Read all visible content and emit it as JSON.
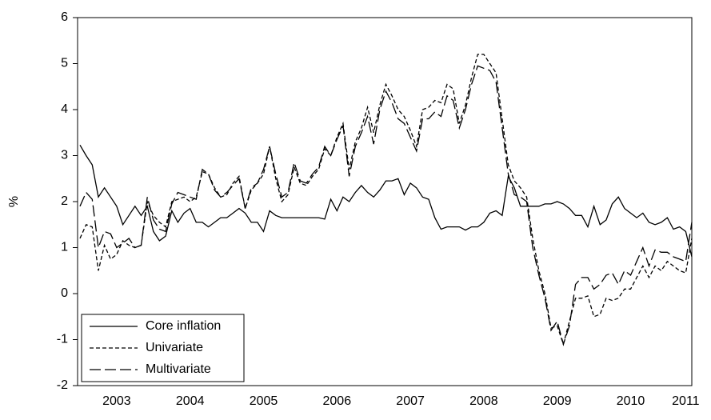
{
  "chart_data": {
    "type": "line",
    "y_label": "%",
    "categories": [
      null,
      null,
      null,
      null,
      null,
      null,
      "2003",
      null,
      null,
      null,
      null,
      null,
      null,
      null,
      null,
      null,
      null,
      null,
      "2004",
      null,
      null,
      null,
      null,
      null,
      null,
      null,
      null,
      null,
      null,
      null,
      "2005",
      null,
      null,
      null,
      null,
      null,
      null,
      null,
      null,
      null,
      null,
      null,
      "2006",
      null,
      null,
      null,
      null,
      null,
      null,
      null,
      null,
      null,
      null,
      null,
      "2007",
      null,
      null,
      null,
      null,
      null,
      null,
      null,
      null,
      null,
      null,
      null,
      "2008",
      null,
      null,
      null,
      null,
      null,
      null,
      null,
      null,
      null,
      null,
      null,
      "2009",
      null,
      null,
      null,
      null,
      null,
      null,
      null,
      null,
      null,
      null,
      null,
      "2010",
      null,
      null,
      null,
      null,
      null,
      null,
      null,
      null,
      "2011",
      null
    ],
    "series": [
      {
        "name": "Core inflation",
        "color": "#000000",
        "dash": "solid",
        "values": [
          3.23,
          3.0,
          2.8,
          2.1,
          2.3,
          2.1,
          1.9,
          1.5,
          1.7,
          1.9,
          1.7,
          1.9,
          1.35,
          1.15,
          1.25,
          1.8,
          1.55,
          1.75,
          1.85,
          1.55,
          1.55,
          1.45,
          1.55,
          1.65,
          1.65,
          1.75,
          1.85,
          1.75,
          1.55,
          1.55,
          1.35,
          1.8,
          1.7,
          1.65,
          1.65,
          1.65,
          1.65,
          1.65,
          1.65,
          1.65,
          1.62,
          2.05,
          1.8,
          2.1,
          2.0,
          2.2,
          2.35,
          2.2,
          2.1,
          2.25,
          2.45,
          2.45,
          2.5,
          2.15,
          2.4,
          2.3,
          2.1,
          2.05,
          1.65,
          1.4,
          1.45,
          1.45,
          1.45,
          1.38,
          1.45,
          1.45,
          1.55,
          1.75,
          1.8,
          1.7,
          2.55,
          2.3,
          1.9,
          1.9,
          1.9,
          1.9,
          1.95,
          1.95,
          2.0,
          1.95,
          1.85,
          1.7,
          1.7,
          1.45,
          1.9,
          1.5,
          1.6,
          1.95,
          2.1,
          1.85,
          1.75,
          1.65,
          1.75,
          1.55,
          1.5,
          1.55,
          1.65,
          1.4,
          1.45,
          1.35,
          0.8
        ]
      },
      {
        "name": "Univariate",
        "color": "#000000",
        "dash": "short",
        "values": [
          1.2,
          1.5,
          1.45,
          0.5,
          1.05,
          0.75,
          0.85,
          1.15,
          1.05,
          1.0,
          1.05,
          2.0,
          1.7,
          1.55,
          1.45,
          2.0,
          2.05,
          2.1,
          2.0,
          2.1,
          2.65,
          2.6,
          2.3,
          2.1,
          2.15,
          2.4,
          2.55,
          1.85,
          2.25,
          2.4,
          2.6,
          3.2,
          2.5,
          2.0,
          2.15,
          2.75,
          2.4,
          2.35,
          2.55,
          2.7,
          3.15,
          3.0,
          3.4,
          3.7,
          2.7,
          3.3,
          3.6,
          4.05,
          3.5,
          4.1,
          4.55,
          4.3,
          4.0,
          3.85,
          3.55,
          3.2,
          4.0,
          4.05,
          4.2,
          4.15,
          4.55,
          4.45,
          3.7,
          4.1,
          4.7,
          5.2,
          5.2,
          5.0,
          4.8,
          3.8,
          2.8,
          2.45,
          2.3,
          2.1,
          1.2,
          0.5,
          0.0,
          -0.75,
          -0.7,
          -1.1,
          -0.6,
          -0.1,
          -0.1,
          -0.05,
          -0.5,
          -0.45,
          -0.1,
          -0.15,
          -0.1,
          0.1,
          0.1,
          0.35,
          0.6,
          0.35,
          0.6,
          0.5,
          0.7,
          0.6,
          0.5,
          0.45,
          1.2
        ]
      },
      {
        "name": "Multivariate",
        "color": "#000000",
        "dash": "long",
        "values": [
          1.9,
          2.2,
          2.05,
          1.0,
          1.35,
          1.3,
          1.0,
          1.1,
          1.2,
          1.0,
          1.05,
          2.1,
          1.6,
          1.4,
          1.35,
          1.95,
          2.2,
          2.15,
          2.1,
          2.05,
          2.7,
          2.6,
          2.25,
          2.1,
          2.2,
          2.35,
          2.5,
          1.85,
          2.3,
          2.4,
          2.7,
          3.2,
          2.6,
          2.1,
          2.2,
          2.85,
          2.45,
          2.4,
          2.6,
          2.75,
          3.2,
          3.0,
          3.35,
          3.65,
          2.55,
          3.2,
          3.5,
          3.85,
          3.25,
          4.0,
          4.4,
          4.15,
          3.8,
          3.7,
          3.4,
          3.1,
          3.8,
          3.8,
          3.95,
          3.85,
          4.3,
          4.2,
          3.6,
          4.0,
          4.55,
          4.95,
          4.9,
          4.85,
          4.6,
          3.6,
          2.6,
          2.15,
          2.1,
          2.0,
          1.0,
          0.4,
          -0.1,
          -0.8,
          -0.6,
          -1.1,
          -0.7,
          0.2,
          0.35,
          0.35,
          0.1,
          0.2,
          0.4,
          0.45,
          0.2,
          0.5,
          0.4,
          0.7,
          1.0,
          0.6,
          0.95,
          0.9,
          0.9,
          0.8,
          0.75,
          0.7,
          1.55
        ]
      }
    ],
    "ylim": [
      -2,
      6
    ],
    "yticks": [
      -2,
      -1,
      0,
      1,
      2,
      3,
      4,
      5,
      6
    ],
    "grid": false,
    "legend": "lower-left"
  }
}
